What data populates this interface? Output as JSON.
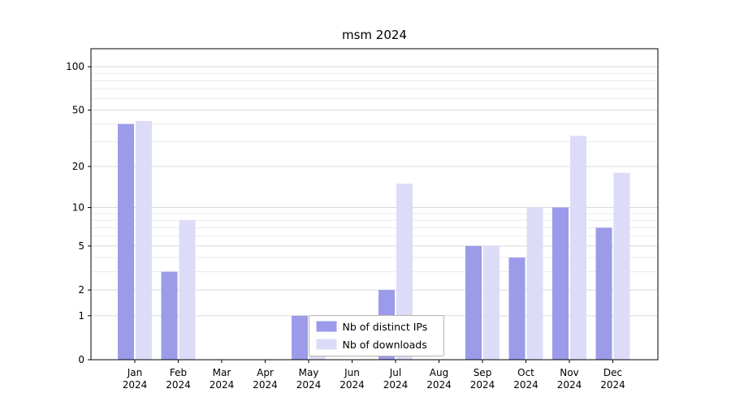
{
  "chart_data": {
    "type": "bar",
    "title": "msm 2024",
    "categories": [
      {
        "month": "Jan",
        "year": "2024"
      },
      {
        "month": "Feb",
        "year": "2024"
      },
      {
        "month": "Mar",
        "year": "2024"
      },
      {
        "month": "Apr",
        "year": "2024"
      },
      {
        "month": "May",
        "year": "2024"
      },
      {
        "month": "Jun",
        "year": "2024"
      },
      {
        "month": "Jul",
        "year": "2024"
      },
      {
        "month": "Aug",
        "year": "2024"
      },
      {
        "month": "Sep",
        "year": "2024"
      },
      {
        "month": "Oct",
        "year": "2024"
      },
      {
        "month": "Nov",
        "year": "2024"
      },
      {
        "month": "Dec",
        "year": "2024"
      }
    ],
    "series": [
      {
        "name": "Nb of distinct IPs",
        "slug": "distinct-ips",
        "color": "#9b9bea",
        "values": [
          40,
          3,
          0,
          0,
          1,
          0,
          2,
          0,
          5,
          4,
          10,
          7
        ]
      },
      {
        "name": "Nb of downloads",
        "slug": "downloads",
        "color": "#dcdcf8",
        "values": [
          42,
          8,
          0,
          0,
          1,
          0,
          15,
          0,
          5,
          10,
          33,
          18
        ]
      }
    ],
    "yscale": "symlog",
    "yticks": [
      0,
      1,
      2,
      5,
      10,
      20,
      50,
      100
    ],
    "y_minor_gridlines": [
      3,
      4,
      6,
      7,
      8,
      9,
      30,
      40,
      60,
      70,
      80,
      90
    ],
    "grid": true,
    "legend_position": "lower-center-inside",
    "colors": {
      "grid_major": "#d9d9d9",
      "grid_minor": "#ebebeb",
      "axis": "#000000",
      "legend_border": "#b3b3b3",
      "background": "#ffffff"
    }
  }
}
